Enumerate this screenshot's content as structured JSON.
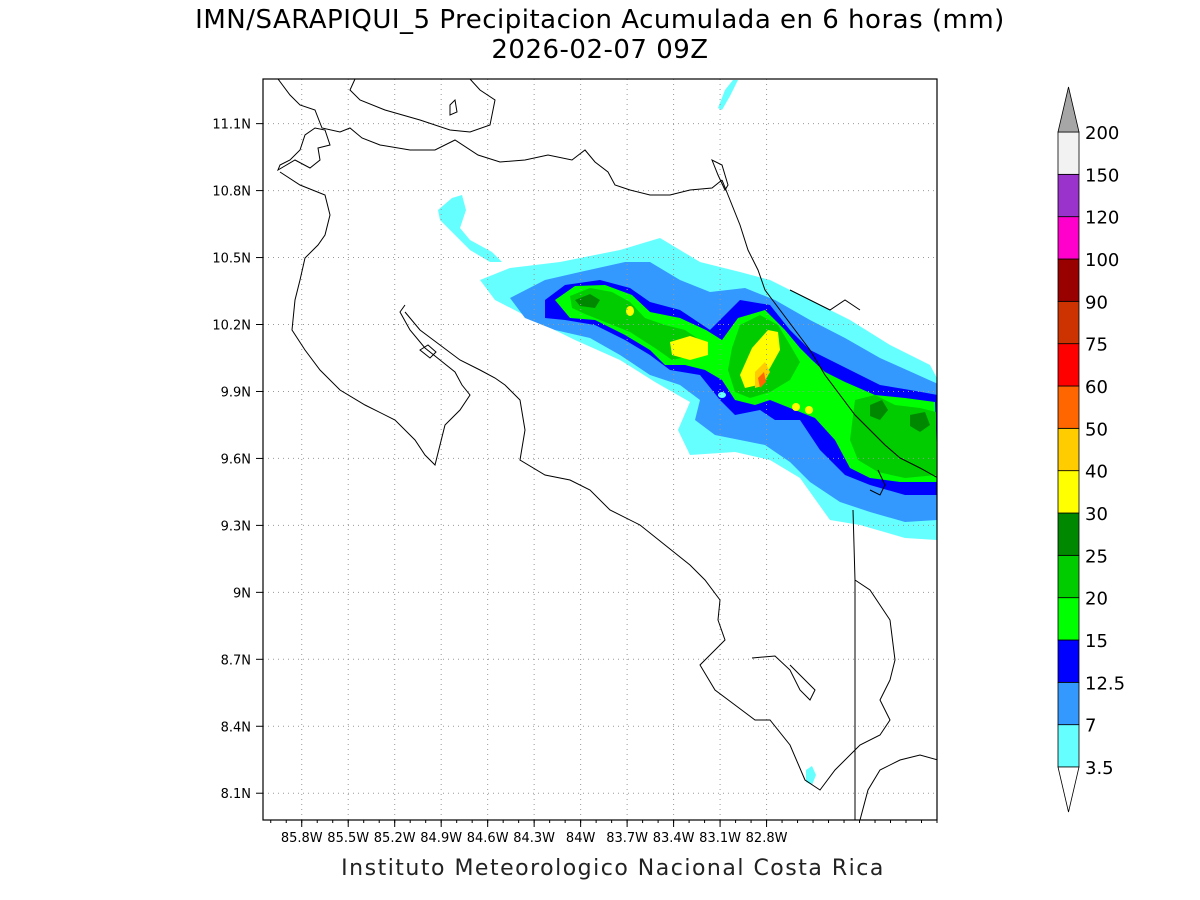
{
  "header": {
    "title": "IMN/SARAPIQUI_5 Precipitacion Acumulada en 6 horas (mm)",
    "subtitle": "2026-02-07 09Z"
  },
  "footer": {
    "credit": "Instituto Meteorologico Nacional Costa Rica"
  },
  "map": {
    "lon_range": [
      -86.05,
      -81.7
    ],
    "lat_range": [
      7.98,
      11.3
    ],
    "lon_ticks": [
      "85.8W",
      "85.5W",
      "85.2W",
      "84.9W",
      "84.6W",
      "84.3W",
      "84W",
      "83.7W",
      "83.4W",
      "83.1W",
      "82.8W"
    ],
    "lat_ticks": [
      "11.1N",
      "10.8N",
      "10.5N",
      "10.2N",
      "9.9N",
      "9.6N",
      "9.3N",
      "9N",
      "8.7N",
      "8.4N",
      "8.1N"
    ],
    "grid": "dotted"
  },
  "legend": {
    "labels": [
      "3.5",
      "7",
      "12.5",
      "15",
      "20",
      "25",
      "30",
      "40",
      "50",
      "60",
      "75",
      "90",
      "100",
      "120",
      "150",
      "200"
    ],
    "colors": [
      "#66ffff",
      "#3399ff",
      "#0000ff",
      "#00ff00",
      "#00cc00",
      "#008800",
      "#ffff00",
      "#ffcc00",
      "#ff6600",
      "#ff0000",
      "#cc3300",
      "#990000",
      "#ff00cc",
      "#9933cc",
      "#f2f2f2",
      "#a6a6a6"
    ],
    "overflow_colors": {
      "below": "#ffffff",
      "above": "#a6a6a6"
    }
  }
}
